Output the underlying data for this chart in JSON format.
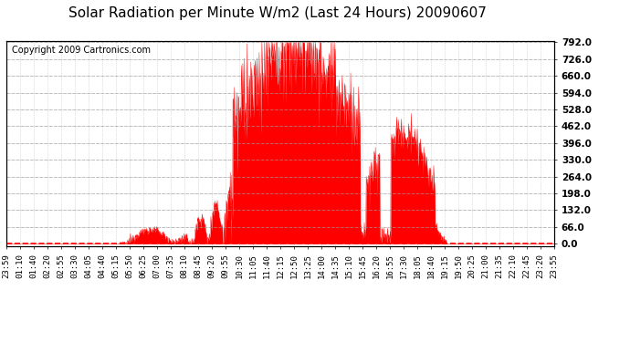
{
  "title": "Solar Radiation per Minute W/m2 (Last 24 Hours) 20090607",
  "copyright": "Copyright 2009 Cartronics.com",
  "bg_color": "#ffffff",
  "fill_color": "#ff0000",
  "grid_color_dotted": "#c0c0c0",
  "dashed_hline_color": "#a0a0a0",
  "dashed_baseline_color": "#ff0000",
  "ylim": [
    -10.0,
    797.0
  ],
  "yticks": [
    0.0,
    66.0,
    132.0,
    198.0,
    264.0,
    330.0,
    396.0,
    462.0,
    528.0,
    594.0,
    660.0,
    726.0,
    792.0
  ],
  "x_labels": [
    "23:59",
    "01:10",
    "01:40",
    "02:20",
    "02:55",
    "03:30",
    "04:05",
    "04:40",
    "05:15",
    "05:50",
    "06:25",
    "07:00",
    "07:35",
    "08:10",
    "08:45",
    "09:20",
    "09:55",
    "10:30",
    "11:05",
    "11:40",
    "12:15",
    "12:50",
    "13:25",
    "14:00",
    "14:35",
    "15:10",
    "15:45",
    "16:20",
    "16:55",
    "17:30",
    "18:05",
    "18:40",
    "19:15",
    "19:50",
    "20:25",
    "21:00",
    "21:35",
    "22:10",
    "22:45",
    "23:20",
    "23:55"
  ],
  "title_fontsize": 11,
  "copyright_fontsize": 7,
  "tick_fontsize": 6.5,
  "ytick_fontsize": 7.5
}
